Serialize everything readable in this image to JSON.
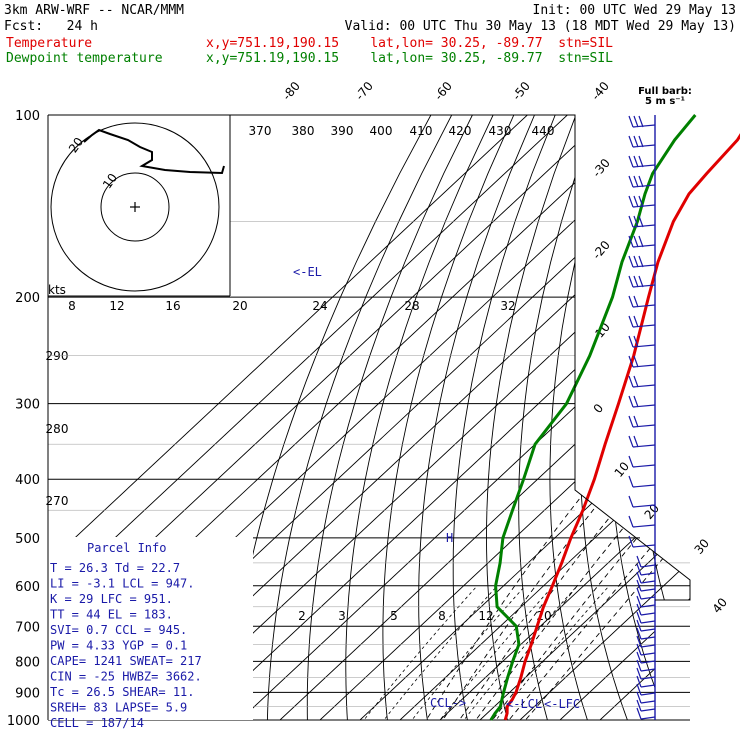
{
  "header": {
    "line1_left": "3km ARW-WRF -- NCAR/MMM",
    "line1_right": "Init: 00 UTC Wed 29 May 13",
    "line2_left": "Fcst:   24 h",
    "line2_right": "Valid: 00 UTC Thu 30 May 13 (18 MDT Wed 29 May 13)",
    "temp_label": "Temperature",
    "temp_info": "x,y=751.19,190.15    lat,lon= 30.25, -89.77  stn=SIL",
    "dew_label": "Dewpoint temperature",
    "dew_info": "x,y=751.19,190.15    lat,lon= 30.25, -89.77  stn=SIL"
  },
  "colors": {
    "temperature": "#e00000",
    "dewpoint": "#008000",
    "info": "#1a1aa8"
  },
  "barb_legend": {
    "line1": "Full barb:",
    "line2": "5 m s⁻¹"
  },
  "hodograph": {
    "units": "kts",
    "speed_labels": [
      "8",
      "12",
      "16",
      "20",
      "24",
      "28",
      "32"
    ],
    "ring_labels": [
      "10",
      "20"
    ]
  },
  "markers": {
    "el": "<-EL",
    "ccl": "CCL->",
    "lcl": "<-LCL",
    "lfc": "<-LFC",
    "h": "H"
  },
  "parcel_info": {
    "title": "Parcel Info",
    "rows": [
      "T  =   26.3 Td =  22.7",
      "LI =   -3.1 LCL =  947.",
      "K  =     29 LFC =  951.",
      "TT =     44 EL  =  183.",
      "SVI=    0.7 CCL =  945.",
      "PW =   4.33 YGP =   0.1",
      "CAPE=  1241 SWEAT=  217",
      "CIN =   -25 HWBZ= 3662.",
      "Tc =   26.5 SHEAR=  11.",
      "SREH=    83 LAPSE=  5.9",
      "CELL = 187/14"
    ]
  },
  "chart_data": {
    "type": "line",
    "title": "",
    "xlabel": "",
    "ylabel": "",
    "y_scale": "log-pressure",
    "pressure_range_hpa": [
      1000,
      100
    ],
    "pressure_ticks": [
      100,
      200,
      300,
      400,
      500,
      600,
      700,
      800,
      900,
      1000
    ],
    "isotherm_labels": [
      -80,
      -70,
      -60,
      -50,
      -40,
      -30,
      -20,
      -10,
      0,
      10,
      20,
      30,
      40
    ],
    "theta_labels": [
      370,
      380,
      390,
      400,
      410,
      420,
      430,
      440,
      290,
      280,
      270
    ],
    "mixing_ratio_labels": [
      2,
      3,
      5,
      8,
      12,
      20
    ],
    "series": [
      {
        "name": "Temperature",
        "units": "C",
        "points": [
          {
            "p": 1000,
            "t": 26.3
          },
          {
            "p": 975,
            "t": 25.0
          },
          {
            "p": 950,
            "t": 23.2
          },
          {
            "p": 925,
            "t": 22.6
          },
          {
            "p": 900,
            "t": 21.6
          },
          {
            "p": 850,
            "t": 18.8
          },
          {
            "p": 800,
            "t": 15.6
          },
          {
            "p": 750,
            "t": 12.6
          },
          {
            "p": 700,
            "t": 9.2
          },
          {
            "p": 650,
            "t": 5.6
          },
          {
            "p": 600,
            "t": 2.2
          },
          {
            "p": 550,
            "t": -1.6
          },
          {
            "p": 500,
            "t": -6.0
          },
          {
            "p": 450,
            "t": -10.4
          },
          {
            "p": 400,
            "t": -15.8
          },
          {
            "p": 350,
            "t": -22.5
          },
          {
            "p": 300,
            "t": -30.0
          },
          {
            "p": 250,
            "t": -39.0
          },
          {
            "p": 200,
            "t": -51.0
          },
          {
            "p": 175,
            "t": -58.0
          },
          {
            "p": 150,
            "t": -65.0
          },
          {
            "p": 135,
            "t": -68.5
          },
          {
            "p": 125,
            "t": -69.5
          },
          {
            "p": 110,
            "t": -70.8
          },
          {
            "p": 100,
            "t": -73.5
          }
        ]
      },
      {
        "name": "Dewpoint temperature",
        "units": "C",
        "points": [
          {
            "p": 1000,
            "t": 22.7
          },
          {
            "p": 975,
            "t": 22.0
          },
          {
            "p": 950,
            "t": 21.5
          },
          {
            "p": 925,
            "t": 20.0
          },
          {
            "p": 900,
            "t": 18.5
          },
          {
            "p": 850,
            "t": 15.5
          },
          {
            "p": 800,
            "t": 12.5
          },
          {
            "p": 750,
            "t": 9.5
          },
          {
            "p": 700,
            "t": 4.0
          },
          {
            "p": 650,
            "t": -6.0
          },
          {
            "p": 600,
            "t": -12.0
          },
          {
            "p": 550,
            "t": -17.0
          },
          {
            "p": 500,
            "t": -23.0
          },
          {
            "p": 450,
            "t": -28.0
          },
          {
            "p": 400,
            "t": -33.5
          },
          {
            "p": 350,
            "t": -40.0
          },
          {
            "p": 300,
            "t": -43.0
          },
          {
            "p": 250,
            "t": -50.0
          },
          {
            "p": 200,
            "t": -60.0
          },
          {
            "p": 175,
            "t": -67.0
          },
          {
            "p": 150,
            "t": -74.0
          },
          {
            "p": 135,
            "t": -79.5
          },
          {
            "p": 125,
            "t": -83.0
          },
          {
            "p": 110,
            "t": -86.5
          },
          {
            "p": 100,
            "t": -88.0
          }
        ]
      }
    ]
  }
}
